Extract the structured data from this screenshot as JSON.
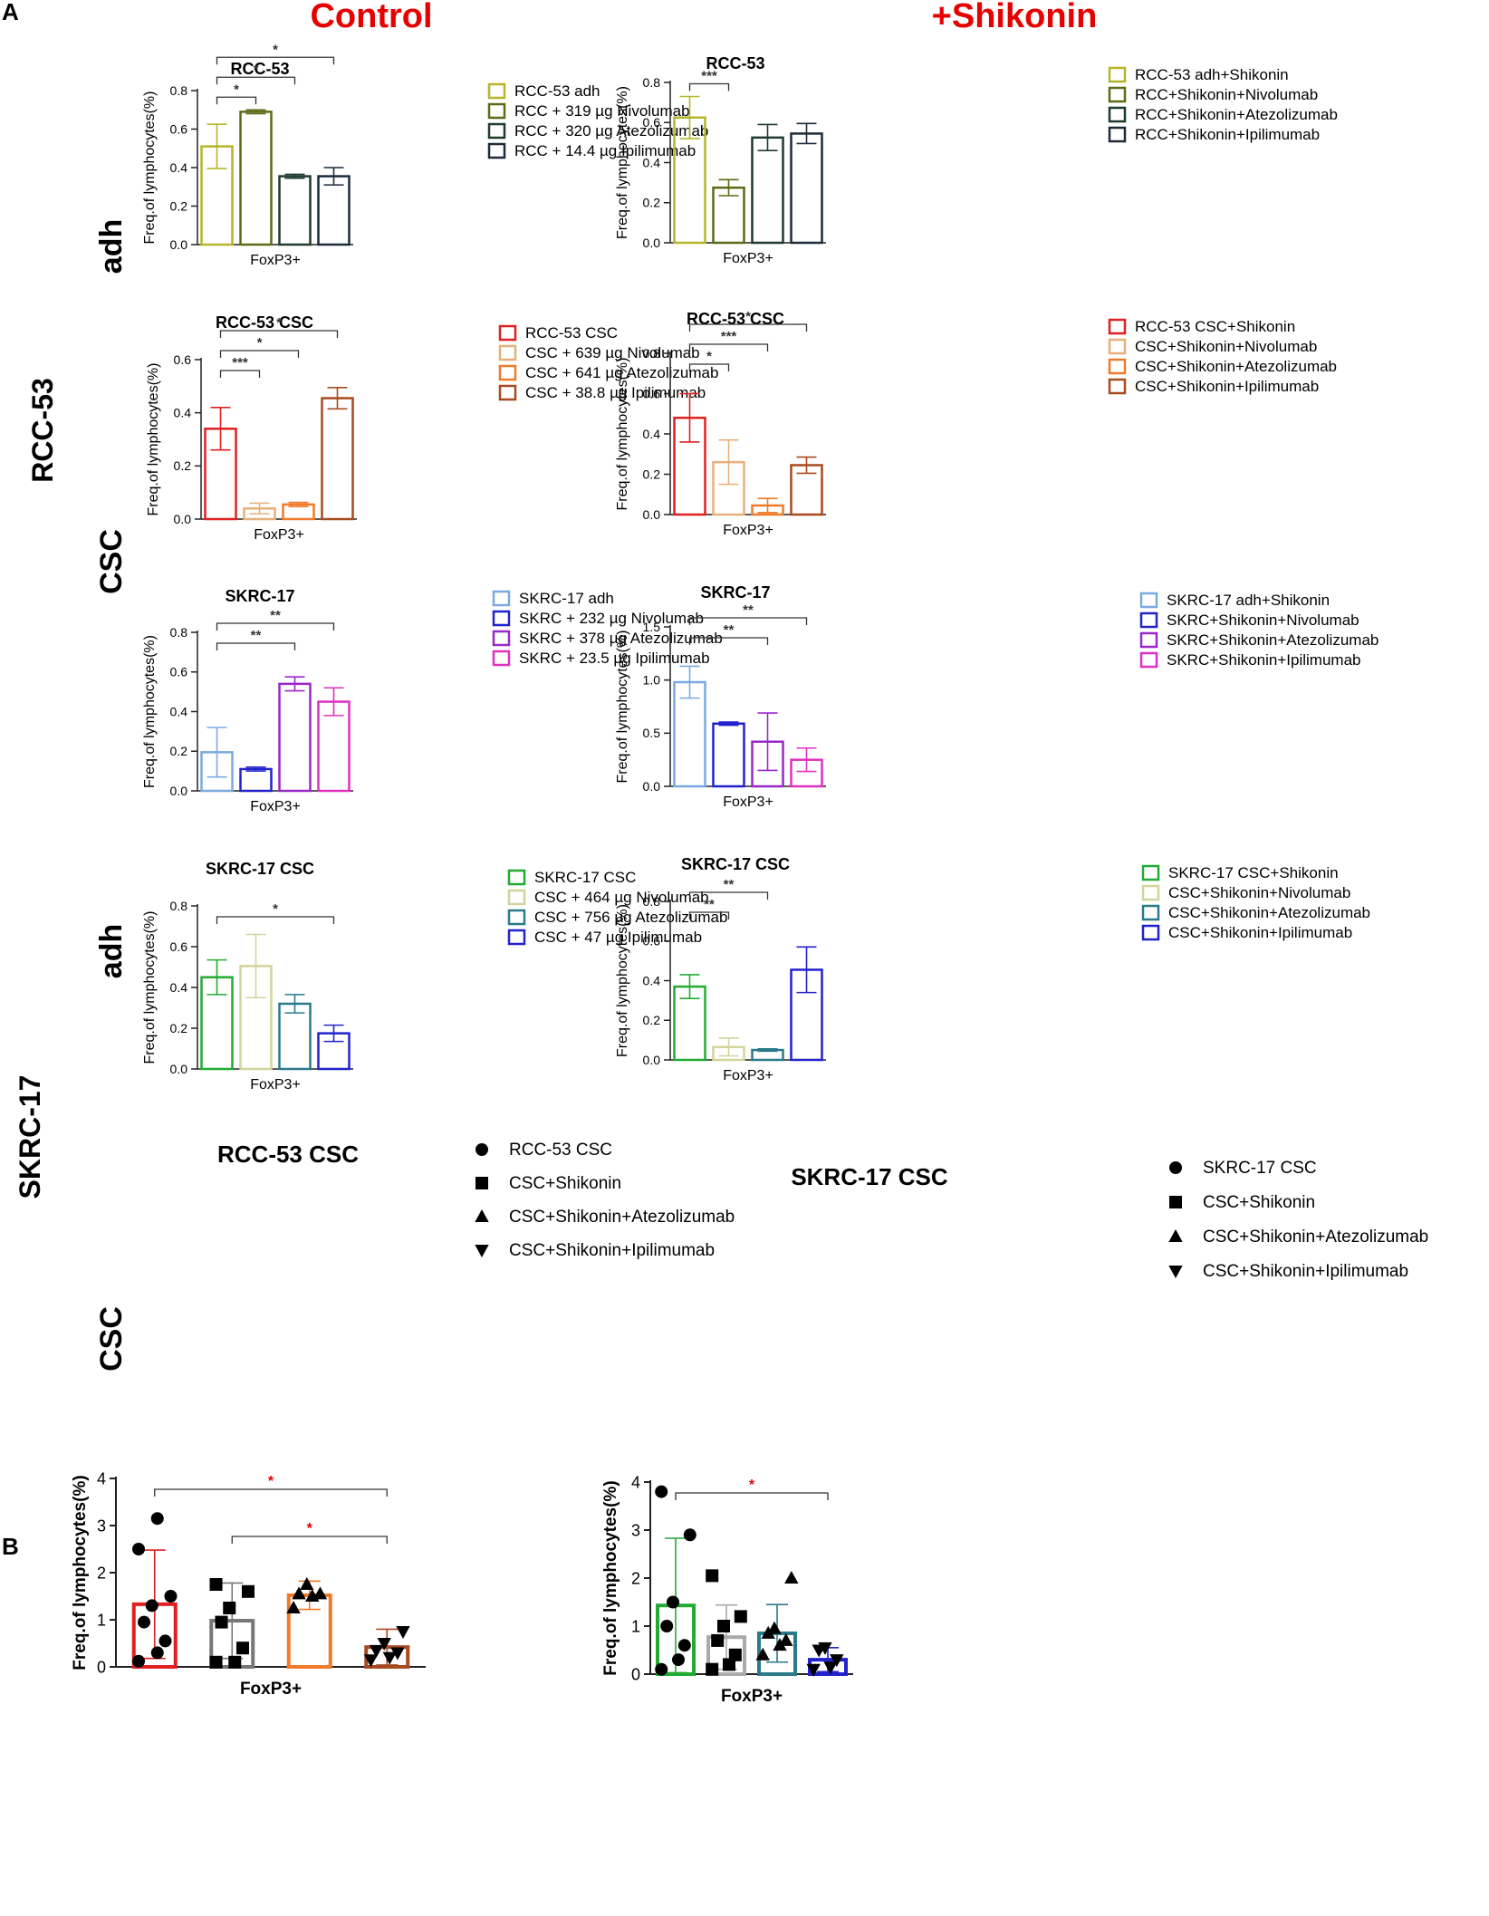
{
  "figure": {
    "panel_a": "A",
    "panel_b": "B",
    "col_control": "Control",
    "col_shikonin": "+Shikonin",
    "row_rcc53": "RCC-53",
    "row_skrc17": "SKRC-17",
    "row_adh": "adh",
    "row_csc": "CSC",
    "colors": {
      "header_red": "#e60000",
      "sig_red": "#e60000",
      "axis": "#222222"
    }
  },
  "chart_data": [
    {
      "id": "a1",
      "type": "bar",
      "title": "RCC-53",
      "xlabel": "FoxP3+",
      "ylabel": "Freq.of lymphocytes(%)",
      "ylim": [
        0,
        0.8
      ],
      "ticks": [
        0.0,
        0.2,
        0.4,
        0.6,
        0.8
      ],
      "tick_labels": [
        "0.0",
        "0.2",
        "0.4",
        "0.6",
        "0.8"
      ],
      "categories": [
        "RCC-53 adh",
        "RCC + 319 µg Nivolumab",
        "RCC + 320 µg Atezolizumab",
        "RCC + 14.4 µg Ipilimumab"
      ],
      "values": [
        0.51,
        0.69,
        0.355,
        0.355
      ],
      "errors": [
        0.115,
        0.01,
        0.01,
        0.045
      ],
      "colors": [
        "#b5b52a",
        "#5c6b16",
        "#1f3a2e",
        "#1c2a3a"
      ],
      "significance": [
        {
          "from": 0,
          "to": 1,
          "label": "*"
        },
        {
          "from": 0,
          "to": 2,
          "label": "*"
        },
        {
          "from": 0,
          "to": 3,
          "label": "*"
        }
      ]
    },
    {
      "id": "a2",
      "type": "bar",
      "title": "RCC-53",
      "xlabel": "FoxP3+",
      "ylabel": "Freq.of lymphocytes(%)",
      "ylim": [
        0,
        0.8
      ],
      "ticks": [
        0.0,
        0.2,
        0.4,
        0.6,
        0.8
      ],
      "tick_labels": [
        "0.0",
        "0.2",
        "0.4",
        "0.6",
        "0.8"
      ],
      "categories": [
        "RCC-53 adh+Shikonin",
        "RCC+Shikonin+Nivolumab",
        "RCC+Shikonin+Atezolizumab",
        "RCC+Shikonin+Ipilimumab"
      ],
      "values": [
        0.625,
        0.275,
        0.525,
        0.545
      ],
      "errors": [
        0.105,
        0.04,
        0.065,
        0.05
      ],
      "colors": [
        "#b5b52a",
        "#5c6b16",
        "#1f3a2e",
        "#1c2a3a"
      ],
      "significance": [
        {
          "from": 0,
          "to": 1,
          "label": "***"
        }
      ]
    },
    {
      "id": "a3",
      "type": "bar",
      "title": "RCC-53 CSC",
      "xlabel": "FoxP3+",
      "ylabel": "Freq.of lymphocytes(%)",
      "ylim": [
        0,
        0.6
      ],
      "ticks": [
        0.0,
        0.2,
        0.4,
        0.6
      ],
      "tick_labels": [
        "0.0",
        "0.2",
        "0.4",
        "0.6"
      ],
      "categories": [
        "RCC-53 CSC",
        "CSC + 639 µg Nivolumab",
        "CSC + 641 µg Atezolizumab",
        "CSC + 38.8 µg Ipilimumab"
      ],
      "values": [
        0.34,
        0.04,
        0.055,
        0.455
      ],
      "errors": [
        0.08,
        0.02,
        0.008,
        0.04
      ],
      "colors": [
        "#e02020",
        "#e6b07a",
        "#f07a2a",
        "#a84a20"
      ],
      "significance": [
        {
          "from": 0,
          "to": 1,
          "label": "***"
        },
        {
          "from": 0,
          "to": 2,
          "label": "*"
        },
        {
          "from": 0,
          "to": 3,
          "label": "*"
        }
      ]
    },
    {
      "id": "a4",
      "type": "bar",
      "title": "RCC-53 CSC",
      "xlabel": "FoxP3+",
      "ylabel": "Freq.of lymphocytes(%)",
      "ylim": [
        0,
        0.8
      ],
      "ticks": [
        0.0,
        0.2,
        0.4,
        0.6,
        0.8
      ],
      "tick_labels": [
        "0.0",
        "0.2",
        "0.4",
        "0.6",
        "0.8"
      ],
      "categories": [
        "RCC-53 CSC+Shikonin",
        "CSC+Shikonin+Nivolumab",
        "CSC+Shikonin+Atezolizumab",
        "CSC+Shikonin+Ipilimumab"
      ],
      "values": [
        0.48,
        0.26,
        0.045,
        0.245
      ],
      "errors": [
        0.12,
        0.11,
        0.035,
        0.04
      ],
      "colors": [
        "#e02020",
        "#e6b07a",
        "#f07a2a",
        "#a84a20"
      ],
      "significance": [
        {
          "from": 0,
          "to": 1,
          "label": "*"
        },
        {
          "from": 0,
          "to": 2,
          "label": "***"
        },
        {
          "from": 0,
          "to": 3,
          "label": "*"
        }
      ]
    },
    {
      "id": "a5",
      "type": "bar",
      "title": "SKRC-17",
      "xlabel": "FoxP3+",
      "ylabel": "Freq.of lymphocytes(%)",
      "ylim": [
        0,
        0.8
      ],
      "ticks": [
        0.0,
        0.2,
        0.4,
        0.6,
        0.8
      ],
      "tick_labels": [
        "0.0",
        "0.2",
        "0.4",
        "0.6",
        "0.8"
      ],
      "categories": [
        "SKRC-17 adh",
        "SKRC + 232 µg Nivolumab",
        "SKRC + 378 µg Atezolizumab",
        "SKRC + 23.5 µg Ipilimumab"
      ],
      "values": [
        0.195,
        0.11,
        0.54,
        0.45
      ],
      "errors": [
        0.125,
        0.01,
        0.035,
        0.07
      ],
      "colors": [
        "#7aaae0",
        "#2222cc",
        "#9a28c8",
        "#e030c0"
      ],
      "significance": [
        {
          "from": 0,
          "to": 2,
          "label": "**"
        },
        {
          "from": 0,
          "to": 3,
          "label": "**"
        }
      ]
    },
    {
      "id": "a6",
      "type": "bar",
      "title": "SKRC-17",
      "xlabel": "FoxP3+",
      "ylabel": "Freq.of lymphocytes(%)",
      "ylim": [
        0,
        1.5
      ],
      "ticks": [
        0.0,
        0.5,
        1.0,
        1.5
      ],
      "tick_labels": [
        "0.0",
        "0.5",
        "1.0",
        "1.5"
      ],
      "categories": [
        "SKRC-17 adh+Shikonin",
        "SKRC+Shikonin+Nivolumab",
        "SKRC+Shikonin+Atezolizumab",
        "SKRC+Shikonin+Ipilimumab"
      ],
      "values": [
        0.98,
        0.59,
        0.42,
        0.25
      ],
      "errors": [
        0.15,
        0.015,
        0.27,
        0.11
      ],
      "colors": [
        "#7aaae0",
        "#2222cc",
        "#9a28c8",
        "#e030c0"
      ],
      "significance": [
        {
          "from": 0,
          "to": 2,
          "label": "**"
        },
        {
          "from": 0,
          "to": 3,
          "label": "**"
        }
      ]
    },
    {
      "id": "a7",
      "type": "bar",
      "title": "SKRC-17 CSC",
      "xlabel": "FoxP3+",
      "ylabel": "Freq.of lymphocytes(%)",
      "ylim": [
        0,
        0.8
      ],
      "ticks": [
        0.0,
        0.2,
        0.4,
        0.6,
        0.8
      ],
      "tick_labels": [
        "0.0",
        "0.2",
        "0.4",
        "0.6",
        "0.8"
      ],
      "categories": [
        "SKRC-17 CSC",
        "CSC + 464 µg Nivolumab",
        "CSC + 756 µg Atezolizumab",
        "CSC + 47 µg Ipilimumab"
      ],
      "values": [
        0.45,
        0.505,
        0.32,
        0.175
      ],
      "errors": [
        0.085,
        0.155,
        0.045,
        0.04
      ],
      "colors": [
        "#22aa33",
        "#d2d49a",
        "#2a7a8a",
        "#2222cc"
      ],
      "significance": [
        {
          "from": 0,
          "to": 3,
          "label": "*"
        }
      ]
    },
    {
      "id": "a8",
      "type": "bar",
      "title": "SKRC-17 CSC",
      "xlabel": "FoxP3+",
      "ylabel": "Freq.of lymphocytes(%)",
      "ylim": [
        0,
        0.8
      ],
      "ticks": [
        0.0,
        0.2,
        0.4,
        0.6,
        0.8
      ],
      "tick_labels": [
        "0.0",
        "0.2",
        "0.4",
        "0.6",
        "0.8"
      ],
      "categories": [
        "SKRC-17 CSC+Shikonin",
        "CSC+Shikonin+Nivolumab",
        "CSC+Shikonin+Atezolizumab",
        "CSC+Shikonin+Ipilimumab"
      ],
      "values": [
        0.37,
        0.065,
        0.05,
        0.455
      ],
      "errors": [
        0.06,
        0.045,
        0.006,
        0.115
      ],
      "colors": [
        "#22aa33",
        "#d2d49a",
        "#2a7a8a",
        "#2222cc"
      ],
      "significance": [
        {
          "from": 0,
          "to": 1,
          "label": "**"
        },
        {
          "from": 0,
          "to": 2,
          "label": "**"
        }
      ]
    },
    {
      "id": "b1",
      "type": "bar",
      "title": "RCC-53 CSC",
      "xlabel": "FoxP3+",
      "ylabel": "Freq.of lymphocytes(%)",
      "ylim": [
        0,
        4
      ],
      "ticks": [
        0,
        1,
        2,
        3,
        4
      ],
      "tick_labels": [
        "0",
        "1",
        "2",
        "3",
        "4"
      ],
      "categories": [
        "RCC-53 CSC",
        "CSC+Shikonin",
        "CSC+Shikonin+Atezolizumab",
        "CSC+Shikonin+Ipilimumab"
      ],
      "markers": [
        "circle",
        "square",
        "triangle-up",
        "triangle-down"
      ],
      "values": [
        1.33,
        0.98,
        1.52,
        0.42
      ],
      "errors": [
        1.15,
        0.8,
        0.3,
        0.38
      ],
      "colors": [
        "#e02020",
        "#777777",
        "#f07a2a",
        "#a84a20"
      ],
      "points": [
        [
          0.12,
          0.3,
          0.55,
          0.95,
          1.3,
          1.5,
          2.5,
          3.15
        ],
        [
          0.1,
          0.1,
          0.4,
          0.95,
          1.25,
          1.6,
          1.75
        ],
        [
          1.25,
          1.5,
          1.55,
          1.55,
          1.75
        ],
        [
          0.15,
          0.2,
          0.3,
          0.35,
          0.5,
          0.75
        ]
      ],
      "significance": [
        {
          "from": 0,
          "to": 3,
          "label": "*"
        },
        {
          "from": 1,
          "to": 3,
          "label": "*"
        }
      ]
    },
    {
      "id": "b2",
      "type": "bar",
      "title": "SKRC-17 CSC",
      "xlabel": "FoxP3+",
      "ylabel": "Freq.of lymphocytes(%)",
      "ylim": [
        0,
        4
      ],
      "ticks": [
        0,
        1,
        2,
        3,
        4
      ],
      "tick_labels": [
        "0",
        "1",
        "2",
        "3",
        "4"
      ],
      "categories": [
        "SKRC-17 CSC",
        "CSC+Shikonin",
        "CSC+Shikonin+Atezolizumab",
        "CSC+Shikonin+Ipilimumab"
      ],
      "markers": [
        "circle",
        "square",
        "triangle-up",
        "triangle-down"
      ],
      "values": [
        1.43,
        0.77,
        0.85,
        0.3
      ],
      "errors": [
        1.4,
        0.67,
        0.6,
        0.25
      ],
      "colors": [
        "#22aa33",
        "#aaaaaa",
        "#2a7a8a",
        "#2222cc"
      ],
      "points": [
        [
          0.1,
          0.3,
          0.6,
          1.0,
          1.5,
          2.9,
          3.8
        ],
        [
          0.1,
          0.2,
          0.4,
          0.7,
          1.0,
          1.2,
          2.05
        ],
        [
          0.4,
          0.6,
          0.7,
          0.85,
          0.95,
          2.0
        ],
        [
          0.1,
          0.15,
          0.3,
          0.5,
          0.55
        ]
      ],
      "significance": [
        {
          "from": 0,
          "to": 3,
          "label": "*"
        }
      ]
    }
  ]
}
